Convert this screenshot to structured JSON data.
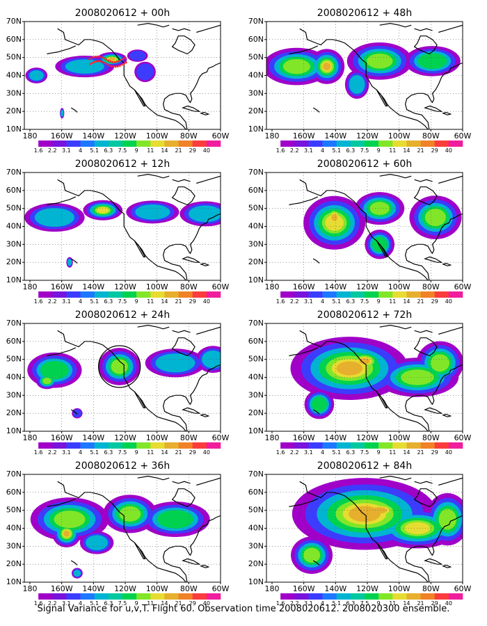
{
  "caption": "Signal Variance for u,v,T. Flight 60. Observation time 2008020612. 2008020300 ensemble.",
  "x_ticks": [
    "180",
    "160W",
    "140W",
    "120W",
    "100W",
    "80W",
    "60W"
  ],
  "y_ticks": [
    "10N",
    "20N",
    "30N",
    "40N",
    "50N",
    "60N",
    "70N"
  ],
  "colorbar": {
    "labels": [
      "1.6",
      "2.2",
      "3.1",
      "4",
      "5.1",
      "6.3",
      "7.5",
      "9",
      "11",
      "14",
      "21",
      "29",
      "40"
    ],
    "colors": [
      "#ffffff",
      "#a000c8",
      "#7814dc",
      "#3c3cff",
      "#1e78ff",
      "#00b4d2",
      "#00c8a0",
      "#00d250",
      "#82e628",
      "#e6dc32",
      "#e6af2d",
      "#f08228",
      "#fa3c3c",
      "#f01e9c"
    ]
  },
  "coast_color": "#000000",
  "panels": [
    {
      "title": "2008020612 + 00h",
      "lead": 0
    },
    {
      "title": "2008020612 + 48h",
      "lead": 48
    },
    {
      "title": "2008020612 + 12h",
      "lead": 12
    },
    {
      "title": "2008020612 + 60h",
      "lead": 60
    },
    {
      "title": "2008020612 + 24h",
      "lead": 24
    },
    {
      "title": "2008020612 + 72h",
      "lead": 72
    },
    {
      "title": "2008020612 + 36h",
      "lead": 36
    },
    {
      "title": "2008020612 + 84h",
      "lead": 84
    }
  ]
}
